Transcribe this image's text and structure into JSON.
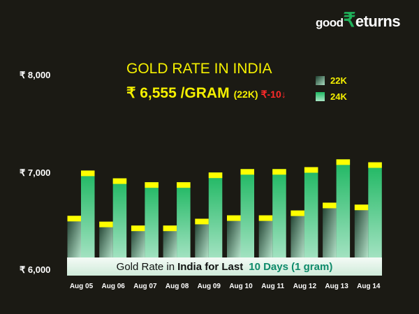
{
  "logo": {
    "part1": "good",
    "part2": "₹",
    "part3": "eturns"
  },
  "header": {
    "title": "GOLD RATE IN INDIA",
    "price": "₹ 6,555 /GRAM",
    "unit": "(22K)",
    "change": "₹-10↓"
  },
  "banner": {
    "part1": "Gold Rate in",
    "part2": "India for Last",
    "part3": "10 Days (1 gram)"
  },
  "chart_data": {
    "type": "bar",
    "categories": [
      "Aug 05",
      "Aug 06",
      "Aug 07",
      "Aug 08",
      "Aug 09",
      "Aug 10",
      "Aug 11",
      "Aug 12",
      "Aug 13",
      "Aug 14"
    ],
    "series": [
      {
        "name": "22K",
        "values": [
          6550,
          6490,
          6450,
          6450,
          6520,
          6555,
          6555,
          6605,
          6685,
          6665
        ],
        "color": "#2f5d47"
      },
      {
        "name": "24K",
        "values": [
          7015,
          6935,
          6895,
          6895,
          6995,
          7030,
          7030,
          7050,
          7130,
          7100
        ],
        "color": "#1fb862"
      }
    ],
    "yticks": [
      "₹ 8,000",
      "₹ 7,000",
      "₹ 6,000"
    ],
    "ylim": [
      6000,
      8000
    ],
    "cap_color": "#ffff00",
    "legend": "top-right",
    "grid": false
  }
}
